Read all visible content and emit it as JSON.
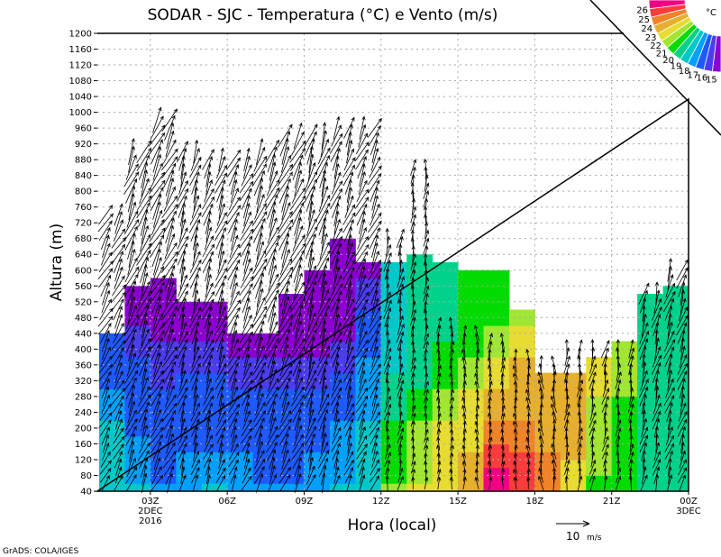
{
  "chart_data": {
    "type": "heatmap",
    "title": "SODAR - SJC - Temperatura (°C) e Vento (m/s)",
    "xlabel": "Hora (local)",
    "ylabel": "Altura (m)",
    "xlim": [
      0.93,
      24
    ],
    "ylim": [
      40,
      1200
    ],
    "grid": true,
    "y_ticks": [
      40,
      80,
      120,
      160,
      200,
      240,
      280,
      320,
      360,
      400,
      440,
      480,
      520,
      560,
      600,
      640,
      680,
      720,
      760,
      800,
      840,
      880,
      920,
      960,
      1000,
      1040,
      1080,
      1120,
      1160,
      1200
    ],
    "x_ticks": [
      {
        "hour": 3,
        "label": "03Z",
        "sub1": "2DEC",
        "sub2": "2016"
      },
      {
        "hour": 6,
        "label": "06Z"
      },
      {
        "hour": 9,
        "label": "09Z"
      },
      {
        "hour": 12,
        "label": "12Z"
      },
      {
        "hour": 15,
        "label": "15Z"
      },
      {
        "hour": 18,
        "label": "18Z"
      },
      {
        "hour": 21,
        "label": "21Z"
      },
      {
        "hour": 24,
        "label": "00Z",
        "sub1": "3DEC"
      }
    ],
    "colorbar": {
      "unit": "°C",
      "labels": [
        "15",
        "16",
        "17",
        "18",
        "19",
        "20",
        "21",
        "22",
        "23",
        "24",
        "25",
        "26"
      ],
      "thresholds": [
        15,
        16,
        17,
        18,
        19,
        20,
        21,
        22,
        23,
        24,
        25,
        26
      ],
      "colors": [
        "#8c00d2",
        "#4b3cf0",
        "#1e5aff",
        "#00a0ff",
        "#00c8c8",
        "#00d28c",
        "#00dc00",
        "#a0e632",
        "#e6dc32",
        "#e6af2d",
        "#f08228",
        "#fa3c3c",
        "#f00082"
      ]
    },
    "temperature_levels": [
      40,
      120,
      200,
      280,
      360,
      440,
      520,
      600,
      680
    ],
    "temperature_columns": [
      {
        "hour": 1,
        "top": 440,
        "t": [
          18,
          18,
          18,
          17,
          16.5,
          16.5
        ]
      },
      {
        "hour": 2,
        "top": 560,
        "t": [
          18,
          17.5,
          16.5,
          16.5,
          16,
          15,
          14.5,
          14.5
        ]
      },
      {
        "hour": 3,
        "top": 580,
        "t": [
          17,
          16.5,
          16.5,
          16,
          15.5,
          14.5,
          14.5,
          14.5
        ]
      },
      {
        "hour": 4,
        "top": 520,
        "t": [
          17.5,
          17,
          16.5,
          16.5,
          15.5,
          14.5,
          14.5
        ]
      },
      {
        "hour": 5,
        "top": 520,
        "t": [
          18,
          17,
          16.5,
          16.5,
          15.5,
          14.5,
          14.5
        ]
      },
      {
        "hour": 6,
        "top": 440,
        "t": [
          17.5,
          17,
          16.5,
          16,
          15,
          14.5
        ]
      },
      {
        "hour": 7,
        "top": 440,
        "t": [
          17,
          16.5,
          16.5,
          16,
          15,
          14.5
        ]
      },
      {
        "hour": 8,
        "top": 540,
        "t": [
          17,
          16.5,
          16.5,
          16,
          15,
          14.5,
          14.5
        ]
      },
      {
        "hour": 9,
        "top": 600,
        "t": [
          17.5,
          17,
          16.5,
          16,
          15,
          14.5,
          14.5,
          14.5
        ]
      },
      {
        "hour": 10,
        "top": 680,
        "t": [
          18,
          17.5,
          17,
          16.5,
          15.5,
          14.5,
          14.5,
          14.5,
          14.5
        ]
      },
      {
        "hour": 11,
        "top": 620,
        "t": [
          18.5,
          18.5,
          18,
          17.5,
          17,
          16.5,
          15.5,
          14.5,
          14.5
        ]
      },
      {
        "hour": 12,
        "top": 620,
        "t": [
          21,
          20.5,
          20,
          19.5,
          18.5,
          18.5,
          18.5,
          18,
          18
        ]
      },
      {
        "hour": 13,
        "top": 640,
        "t": [
          22,
          21.5,
          21,
          20,
          19.5,
          19,
          19,
          19,
          19
        ]
      },
      {
        "hour": 14,
        "top": 620,
        "t": [
          22.5,
          22.5,
          22,
          21,
          20.5,
          19.5,
          19.5,
          19,
          19
        ]
      },
      {
        "hour": 15,
        "top": 600,
        "t": [
          23.5,
          23,
          22.5,
          22,
          21,
          20.5,
          20,
          20,
          20
        ]
      },
      {
        "hour": 16,
        "top": 600,
        "t": [
          26.5,
          25.5,
          24,
          23,
          22,
          21,
          20.5,
          20,
          20
        ]
      },
      {
        "hour": 17,
        "top": 500,
        "t": [
          25.5,
          25,
          24,
          23.5,
          23,
          22,
          21.5
        ]
      },
      {
        "hour": 18,
        "top": 340,
        "t": [
          24,
          24,
          23.5,
          23.5,
          23.5
        ]
      },
      {
        "hour": 19,
        "top": 340,
        "t": [
          22.5,
          23,
          23,
          23.5,
          23.5
        ]
      },
      {
        "hour": 20,
        "top": 380,
        "t": [
          20.5,
          21.5,
          21.5,
          22,
          22
        ]
      },
      {
        "hour": 21,
        "top": 420,
        "t": [
          20,
          20,
          20.5,
          21,
          21,
          21
        ]
      },
      {
        "hour": 22,
        "top": 540,
        "t": [
          19.5,
          19.5,
          19.5,
          19.5,
          19.5,
          19.5,
          19.5
        ]
      },
      {
        "hour": 23,
        "top": 560,
        "t": [
          19.5,
          19.5,
          19,
          19,
          19,
          19,
          19,
          19
        ]
      }
    ],
    "wind_reference": {
      "speed": 10,
      "label": "10",
      "unit": "m/s"
    },
    "wind_columns": [
      {
        "hour": 1,
        "top": 740,
        "dir_deg": 62,
        "speed": 7
      },
      {
        "hour": 2,
        "top": 900,
        "dir_deg": 68,
        "speed": 8
      },
      {
        "hour": 3,
        "top": 980,
        "dir_deg": 64,
        "speed": 8
      },
      {
        "hour": 4,
        "top": 900,
        "dir_deg": 72,
        "speed": 7
      },
      {
        "hour": 5,
        "top": 880,
        "dir_deg": 70,
        "speed": 7
      },
      {
        "hour": 6,
        "top": 880,
        "dir_deg": 66,
        "speed": 7
      },
      {
        "hour": 7,
        "top": 900,
        "dir_deg": 68,
        "speed": 8
      },
      {
        "hour": 8,
        "top": 940,
        "dir_deg": 66,
        "speed": 8
      },
      {
        "hour": 9,
        "top": 940,
        "dir_deg": 72,
        "speed": 8
      },
      {
        "hour": 10,
        "top": 960,
        "dir_deg": 70,
        "speed": 7
      },
      {
        "hour": 11,
        "top": 960,
        "dir_deg": 66,
        "speed": 7
      },
      {
        "hour": 12,
        "top": 680,
        "dir_deg": 80,
        "speed": 6
      },
      {
        "hour": 13,
        "top": 860,
        "dir_deg": 84,
        "speed": 5
      },
      {
        "hour": 14,
        "top": 460,
        "dir_deg": 88,
        "speed": 5
      },
      {
        "hour": 15,
        "top": 440,
        "dir_deg": 92,
        "speed": 5
      },
      {
        "hour": 16,
        "top": 420,
        "dir_deg": 88,
        "speed": 5
      },
      {
        "hour": 17,
        "top": 380,
        "dir_deg": 94,
        "speed": 5
      },
      {
        "hour": 18,
        "top": 360,
        "dir_deg": 96,
        "speed": 6
      },
      {
        "hour": 19,
        "top": 400,
        "dir_deg": 84,
        "speed": 6
      },
      {
        "hour": 20,
        "top": 400,
        "dir_deg": 78,
        "speed": 6
      },
      {
        "hour": 21,
        "top": 400,
        "dir_deg": 84,
        "speed": 6
      },
      {
        "hour": 22,
        "top": 540,
        "dir_deg": 76,
        "speed": 7
      },
      {
        "hour": 23,
        "top": 600,
        "dir_deg": 72,
        "speed": 7
      }
    ]
  },
  "footer": {
    "credit": "GrADS: COLA/IGES"
  }
}
